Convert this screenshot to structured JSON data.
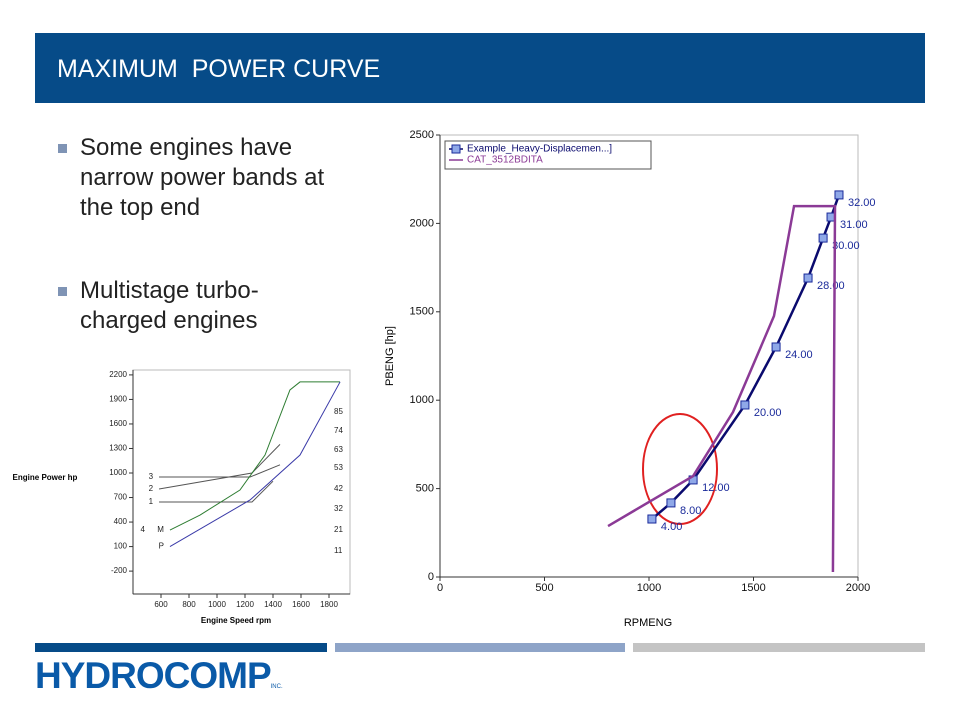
{
  "header": {
    "title": "MAXIMUM  POWER CURVE"
  },
  "bullets": [
    "Some engines have narrow power bands at the top end",
    "Multistage turbo-charged engines"
  ],
  "logo": {
    "text": "HYDROCOMP",
    "suffix": "INC."
  },
  "chart_data": [
    {
      "type": "line",
      "xlabel": "Engine Speed rpm",
      "ylabel": "Engine Power hp",
      "xlim": [
        400,
        1950
      ],
      "ylim": [
        -480,
        2260
      ],
      "xticks": [
        600,
        800,
        1000,
        1200,
        1400,
        1600,
        1800
      ],
      "yticks": [
        2200,
        1900,
        1600,
        1300,
        1000,
        700,
        400,
        100,
        -200
      ],
      "legend": false,
      "grid": false,
      "series": [
        {
          "name": "3",
          "color": "#555555",
          "x": [
            586,
            1236,
            1450
          ],
          "values": [
            951,
            951,
            1100
          ]
        },
        {
          "name": "2",
          "color": "#555555",
          "x": [
            586,
            1250,
            1450
          ],
          "values": [
            804,
            1000,
            1350
          ]
        },
        {
          "name": "1",
          "color": "#555555",
          "x": [
            586,
            1250,
            1400
          ],
          "values": [
            645,
            645,
            900
          ]
        },
        {
          "name": "M",
          "color": "#2e7d32",
          "x": [
            664,
            879,
            1164,
            1343,
            1521,
            1593,
            1879
          ],
          "values": [
            302,
            486,
            792,
            1220,
            2016,
            2114,
            2114
          ]
        },
        {
          "name": "P",
          "color": "#3a3aa8",
          "x": [
            664,
            1236,
            1593,
            1879
          ],
          "values": [
            100,
            670,
            1220,
            2114
          ]
        }
      ],
      "extra_label": "4",
      "curve_labels": [
        "85",
        "74",
        "63",
        "53",
        "42",
        "32",
        "21",
        "11"
      ]
    },
    {
      "type": "line",
      "xlabel": "RPMENG",
      "ylabel": "PBENG [hp]",
      "xlim": [
        0,
        2000
      ],
      "ylim": [
        0,
        2500
      ],
      "xticks": [
        0,
        500,
        1000,
        1500,
        2000
      ],
      "yticks": [
        0,
        500,
        1000,
        1500,
        2000,
        2500
      ],
      "legend": "upper left",
      "grid": false,
      "series": [
        {
          "name": "Example_Heavy-Displacemen...]",
          "color": "#0a0a6e",
          "marker": "square",
          "x": [
            1014,
            1105,
            1211,
            1459,
            1608,
            1761,
            1833,
            1871,
            1909
          ],
          "values": [
            328,
            419,
            549,
            973,
            1301,
            1691,
            1917,
            2036,
            2161
          ],
          "point_labels": [
            "4.00",
            "8.00",
            "12.00",
            "20.00",
            "24.00",
            "28.00",
            "30.00",
            "31.00",
            "32.00"
          ]
        },
        {
          "name": "CAT_3512BDITA",
          "color": "#8b3a96",
          "x": [
            804,
            1211,
            1402,
            1598,
            1694,
            1890,
            1880
          ],
          "values": [
            288,
            571,
            933,
            1476,
            2098,
            2098,
            28
          ]
        }
      ]
    }
  ]
}
